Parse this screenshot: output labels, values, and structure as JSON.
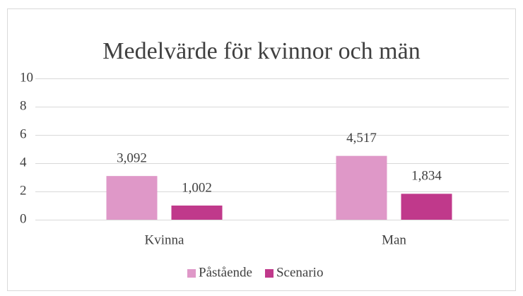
{
  "chart_data": {
    "type": "bar",
    "title": "Medelvärde för kvinnor och män",
    "categories": [
      "Kvinna",
      "Man"
    ],
    "series": [
      {
        "name": "Påstående",
        "color": "#df98c8",
        "values": [
          3.092,
          4.517
        ],
        "value_labels": [
          "3,092",
          "4,517"
        ]
      },
      {
        "name": "Scenario",
        "color": "#c0398b",
        "values": [
          1.002,
          1.834
        ],
        "value_labels": [
          "1,002",
          "1,834"
        ]
      }
    ],
    "ylim": [
      0,
      10
    ],
    "yticks": [
      0,
      2,
      4,
      6,
      8,
      10
    ],
    "grid": true,
    "legend": "bottom"
  }
}
